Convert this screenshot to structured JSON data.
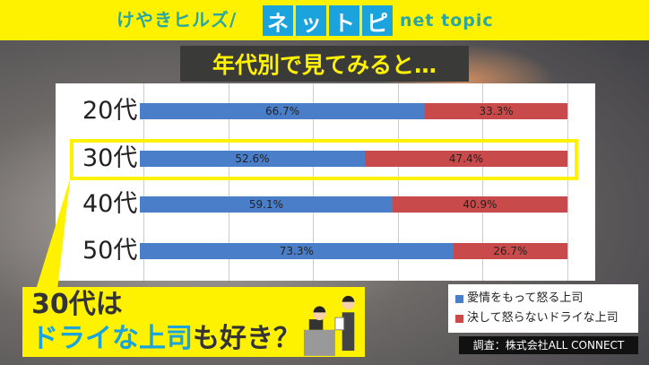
{
  "header": {
    "brand": "けやきヒルズ/",
    "logo_chars": [
      "ネ",
      "ッ",
      "ト",
      "ピ"
    ],
    "subtitle": "net topic"
  },
  "title": "年代別で見てみると…",
  "chart_data": {
    "type": "bar",
    "stacked": true,
    "orientation": "horizontal",
    "categories": [
      "20代",
      "30代",
      "40代",
      "50代"
    ],
    "series": [
      {
        "name": "愛情をもって怒る上司",
        "color": "#4a7ec8",
        "values": [
          66.7,
          52.6,
          59.1,
          73.3
        ],
        "labels": [
          "66.7%",
          "52.6%",
          "59.1%",
          "73.3%"
        ]
      },
      {
        "name": "決して怒らないドライな上司",
        "color": "#c94a4a",
        "values": [
          33.3,
          47.4,
          40.9,
          26.7
        ],
        "labels": [
          "33.3%",
          "47.4%",
          "40.9%",
          "26.7%"
        ]
      }
    ],
    "xlim": [
      0,
      100
    ],
    "grid": true,
    "highlight": "30代",
    "legend": "bottom-right"
  },
  "callout": {
    "line1": "30代は",
    "line2_blue": "ドライな上司",
    "line2_rest": "も好き？"
  },
  "source": "調査：株式会社ALL CONNECT"
}
